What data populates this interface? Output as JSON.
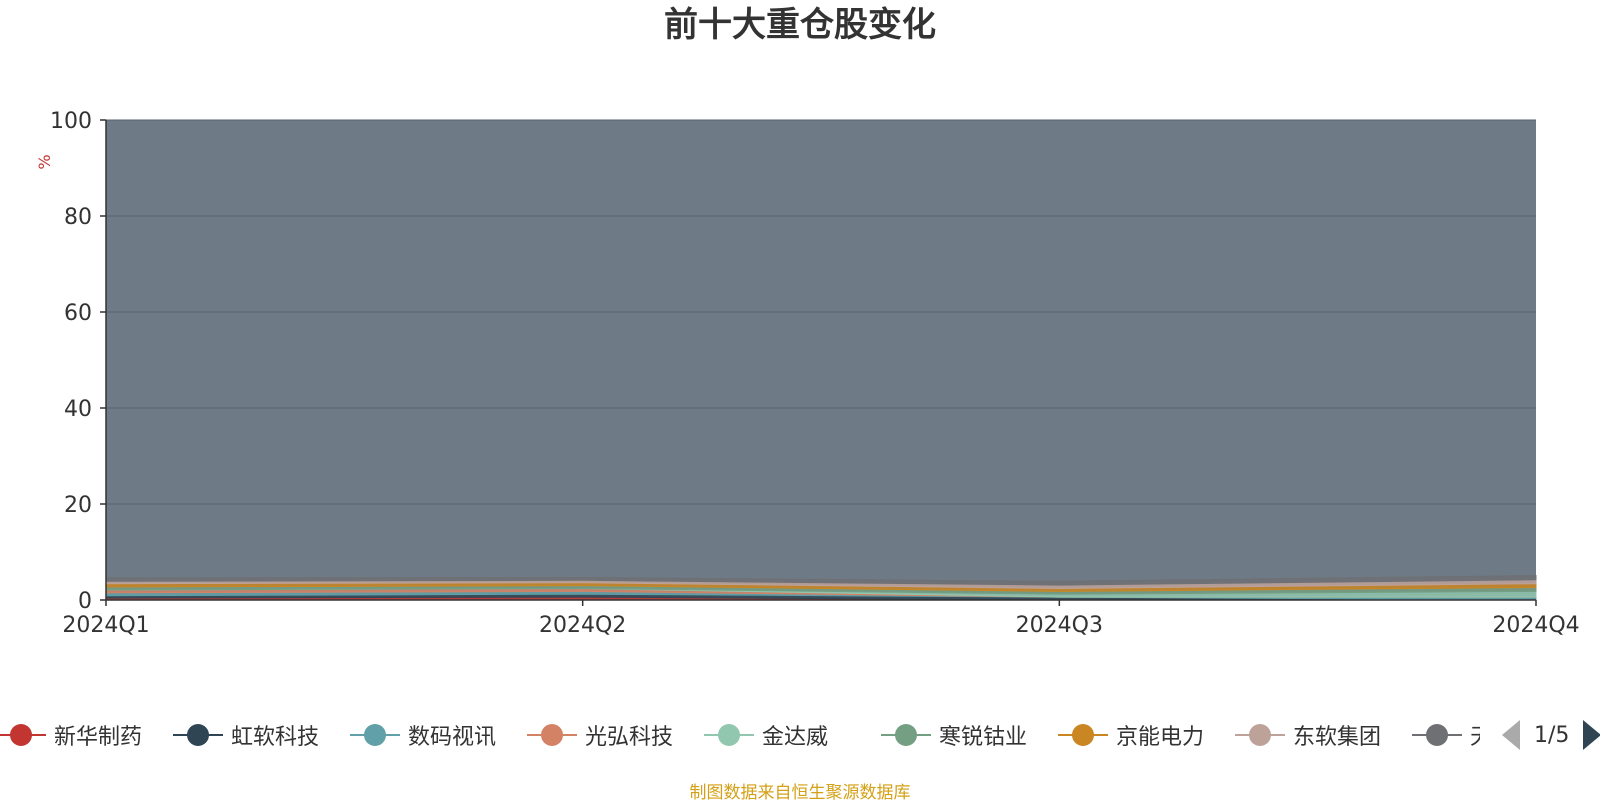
{
  "chart_data": {
    "type": "area",
    "stacked": true,
    "title": "前十大重仓股变化",
    "ylabel": "%",
    "xlabel": "",
    "ylim": [
      0,
      100
    ],
    "yticks": [
      0,
      20,
      40,
      60,
      80,
      100
    ],
    "categories": [
      "2024Q1",
      "2024Q2",
      "2024Q3",
      "2024Q4"
    ],
    "grid": true,
    "series": [
      {
        "name": "新华制药",
        "color": "#c23531",
        "values": [
          0.4,
          0.6,
          0.0,
          0.0
        ]
      },
      {
        "name": "虹软科技",
        "color": "#2f4554",
        "values": [
          0.5,
          0.6,
          0.6,
          0.0
        ]
      },
      {
        "name": "数码视讯",
        "color": "#61a0a8",
        "values": [
          0.6,
          0.6,
          0.0,
          0.6
        ]
      },
      {
        "name": "光弘科技",
        "color": "#d48265",
        "values": [
          0.6,
          0.6,
          0.0,
          0.0
        ]
      },
      {
        "name": "金达威",
        "color": "#91c7ae",
        "values": [
          0.0,
          0.0,
          0.6,
          1.2
        ]
      },
      {
        "name": "寒锐钴业",
        "color": "#749f83",
        "values": [
          0.6,
          0.6,
          0.6,
          0.8
        ]
      },
      {
        "name": "京能电力",
        "color": "#ca8622",
        "values": [
          0.7,
          0.6,
          0.6,
          0.8
        ]
      },
      {
        "name": "东软集团",
        "color": "#bda29a",
        "values": [
          0.5,
          0.5,
          0.7,
          0.8
        ]
      },
      {
        "name": "天",
        "color": "#6e7074",
        "values": [
          0.7,
          0.6,
          0.8,
          0.9
        ]
      }
    ]
  },
  "legend": {
    "page_indicator": "1/5"
  },
  "source_note": "制图数据来自恒生聚源数据库"
}
